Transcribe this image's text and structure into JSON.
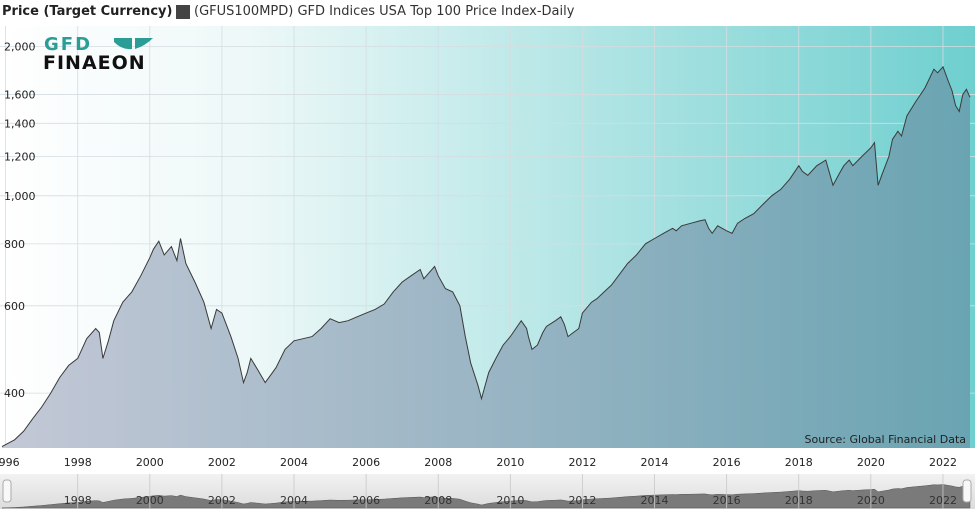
{
  "legend": {
    "y_axis_label": "Price (Target Currency)",
    "series_label": "(GFUS100MPD) GFD Indices USA Top 100 Price Index-Daily",
    "swatch_color": "#444444"
  },
  "logo": {
    "line1": "GFD",
    "line2": "FINAEON",
    "icon": "leaf-logo-icon"
  },
  "source_note": "Source: Global Financial Data",
  "colors": {
    "line": "#3a3a3a",
    "fill_left": "#c3c8d6",
    "fill_right": "#6aa4b2",
    "bg_left": "#ffffff",
    "bg_right": "#6fcfcf",
    "logo": "#2a9d96"
  },
  "navigator": {
    "tick_labels": [
      "1998",
      "2000",
      "2002",
      "2004",
      "2006",
      "2008",
      "2010",
      "2012",
      "2014",
      "2016",
      "2018",
      "2020",
      "2022"
    ]
  },
  "chart_data": {
    "type": "area",
    "scale": "log",
    "ylim": [
      310,
      2200
    ],
    "xlim": [
      1995.9,
      2022.75
    ],
    "y_ticks": [
      400,
      600,
      800,
      1000,
      1200,
      1400,
      1600,
      2000
    ],
    "y_tick_labels": [
      "400",
      "600",
      "800",
      "1,000",
      "1,200",
      "1,400",
      "1,600",
      "2,000"
    ],
    "x_ticks": [
      1996,
      1998,
      2000,
      2002,
      2004,
      2006,
      2008,
      2010,
      2012,
      2014,
      2016,
      2018,
      2020,
      2022
    ],
    "x_tick_labels": [
      "1996",
      "1998",
      "2000",
      "2002",
      "2004",
      "2006",
      "2008",
      "2010",
      "2012",
      "2014",
      "2016",
      "2018",
      "2020",
      "2022"
    ],
    "grid": true,
    "series": [
      {
        "name": "(GFUS100MPD) GFD Indices USA Top 100 Price Index-Daily",
        "points": [
          [
            1995.9,
            312
          ],
          [
            1996.25,
            322
          ],
          [
            1996.5,
            335
          ],
          [
            1996.75,
            355
          ],
          [
            1997.0,
            375
          ],
          [
            1997.25,
            400
          ],
          [
            1997.5,
            430
          ],
          [
            1997.75,
            455
          ],
          [
            1998.0,
            470
          ],
          [
            1998.25,
            515
          ],
          [
            1998.5,
            540
          ],
          [
            1998.6,
            530
          ],
          [
            1998.7,
            470
          ],
          [
            1998.85,
            510
          ],
          [
            1999.0,
            560
          ],
          [
            1999.25,
            610
          ],
          [
            1999.5,
            640
          ],
          [
            1999.75,
            690
          ],
          [
            2000.0,
            750
          ],
          [
            2000.1,
            780
          ],
          [
            2000.25,
            810
          ],
          [
            2000.4,
            760
          ],
          [
            2000.6,
            790
          ],
          [
            2000.75,
            740
          ],
          [
            2000.85,
            820
          ],
          [
            2001.0,
            730
          ],
          [
            2001.25,
            670
          ],
          [
            2001.5,
            610
          ],
          [
            2001.7,
            540
          ],
          [
            2001.85,
            590
          ],
          [
            2002.0,
            580
          ],
          [
            2002.25,
            520
          ],
          [
            2002.45,
            470
          ],
          [
            2002.6,
            420
          ],
          [
            2002.7,
            440
          ],
          [
            2002.8,
            470
          ],
          [
            2003.0,
            445
          ],
          [
            2003.2,
            420
          ],
          [
            2003.5,
            450
          ],
          [
            2003.75,
            490
          ],
          [
            2004.0,
            510
          ],
          [
            2004.25,
            515
          ],
          [
            2004.5,
            520
          ],
          [
            2004.75,
            540
          ],
          [
            2005.0,
            565
          ],
          [
            2005.25,
            555
          ],
          [
            2005.5,
            560
          ],
          [
            2005.75,
            570
          ],
          [
            2006.0,
            580
          ],
          [
            2006.25,
            590
          ],
          [
            2006.5,
            605
          ],
          [
            2006.75,
            640
          ],
          [
            2007.0,
            670
          ],
          [
            2007.25,
            690
          ],
          [
            2007.5,
            710
          ],
          [
            2007.6,
            680
          ],
          [
            2007.75,
            700
          ],
          [
            2007.9,
            720
          ],
          [
            2008.0,
            690
          ],
          [
            2008.2,
            650
          ],
          [
            2008.4,
            640
          ],
          [
            2008.6,
            600
          ],
          [
            2008.75,
            520
          ],
          [
            2008.9,
            460
          ],
          [
            2009.1,
            415
          ],
          [
            2009.2,
            390
          ],
          [
            2009.4,
            440
          ],
          [
            2009.6,
            470
          ],
          [
            2009.8,
            500
          ],
          [
            2010.0,
            520
          ],
          [
            2010.3,
            560
          ],
          [
            2010.45,
            540
          ],
          [
            2010.5,
            520
          ],
          [
            2010.6,
            490
          ],
          [
            2010.75,
            500
          ],
          [
            2010.9,
            530
          ],
          [
            2011.0,
            545
          ],
          [
            2011.25,
            560
          ],
          [
            2011.4,
            570
          ],
          [
            2011.5,
            550
          ],
          [
            2011.6,
            520
          ],
          [
            2011.75,
            530
          ],
          [
            2011.9,
            540
          ],
          [
            2012.0,
            580
          ],
          [
            2012.25,
            610
          ],
          [
            2012.4,
            620
          ],
          [
            2012.6,
            640
          ],
          [
            2012.8,
            660
          ],
          [
            2013.0,
            690
          ],
          [
            2013.25,
            730
          ],
          [
            2013.5,
            760
          ],
          [
            2013.75,
            800
          ],
          [
            2014.0,
            820
          ],
          [
            2014.25,
            840
          ],
          [
            2014.5,
            860
          ],
          [
            2014.6,
            850
          ],
          [
            2014.75,
            870
          ],
          [
            2015.0,
            880
          ],
          [
            2015.25,
            890
          ],
          [
            2015.4,
            895
          ],
          [
            2015.5,
            860
          ],
          [
            2015.6,
            840
          ],
          [
            2015.75,
            870
          ],
          [
            2016.0,
            850
          ],
          [
            2016.15,
            840
          ],
          [
            2016.3,
            880
          ],
          [
            2016.5,
            900
          ],
          [
            2016.75,
            920
          ],
          [
            2017.0,
            960
          ],
          [
            2017.25,
            1000
          ],
          [
            2017.5,
            1030
          ],
          [
            2017.75,
            1080
          ],
          [
            2018.0,
            1150
          ],
          [
            2018.1,
            1120
          ],
          [
            2018.25,
            1100
          ],
          [
            2018.5,
            1150
          ],
          [
            2018.75,
            1180
          ],
          [
            2018.95,
            1050
          ],
          [
            2019.1,
            1100
          ],
          [
            2019.25,
            1150
          ],
          [
            2019.4,
            1180
          ],
          [
            2019.5,
            1150
          ],
          [
            2019.6,
            1170
          ],
          [
            2019.75,
            1200
          ],
          [
            2020.0,
            1250
          ],
          [
            2020.1,
            1280
          ],
          [
            2020.2,
            1050
          ],
          [
            2020.3,
            1100
          ],
          [
            2020.5,
            1200
          ],
          [
            2020.6,
            1300
          ],
          [
            2020.75,
            1350
          ],
          [
            2020.85,
            1320
          ],
          [
            2021.0,
            1450
          ],
          [
            2021.25,
            1550
          ],
          [
            2021.5,
            1650
          ],
          [
            2021.75,
            1800
          ],
          [
            2021.85,
            1770
          ],
          [
            2022.0,
            1820
          ],
          [
            2022.15,
            1700
          ],
          [
            2022.25,
            1630
          ],
          [
            2022.35,
            1520
          ],
          [
            2022.45,
            1480
          ],
          [
            2022.55,
            1600
          ],
          [
            2022.65,
            1640
          ],
          [
            2022.75,
            1580
          ]
        ]
      }
    ]
  }
}
